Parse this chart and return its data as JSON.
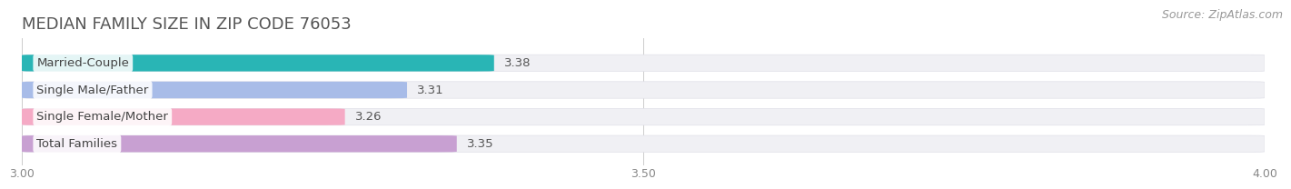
{
  "title": "MEDIAN FAMILY SIZE IN ZIP CODE 76053",
  "source": "Source: ZipAtlas.com",
  "categories": [
    "Married-Couple",
    "Single Male/Father",
    "Single Female/Mother",
    "Total Families"
  ],
  "values": [
    3.38,
    3.31,
    3.26,
    3.35
  ],
  "bar_colors": [
    "#29b5b5",
    "#a8bce8",
    "#f5aac5",
    "#c8a0d2"
  ],
  "track_color": "#f0f0f4",
  "track_edge_color": "#e0e0e8",
  "background_color": "#ffffff",
  "xlim_min": 3.0,
  "xlim_max": 4.0,
  "xticks": [
    3.0,
    3.5,
    4.0
  ],
  "bar_height": 0.62,
  "title_fontsize": 13,
  "source_fontsize": 9,
  "label_fontsize": 9.5,
  "value_fontsize": 9.5,
  "grid_color": "#cccccc"
}
